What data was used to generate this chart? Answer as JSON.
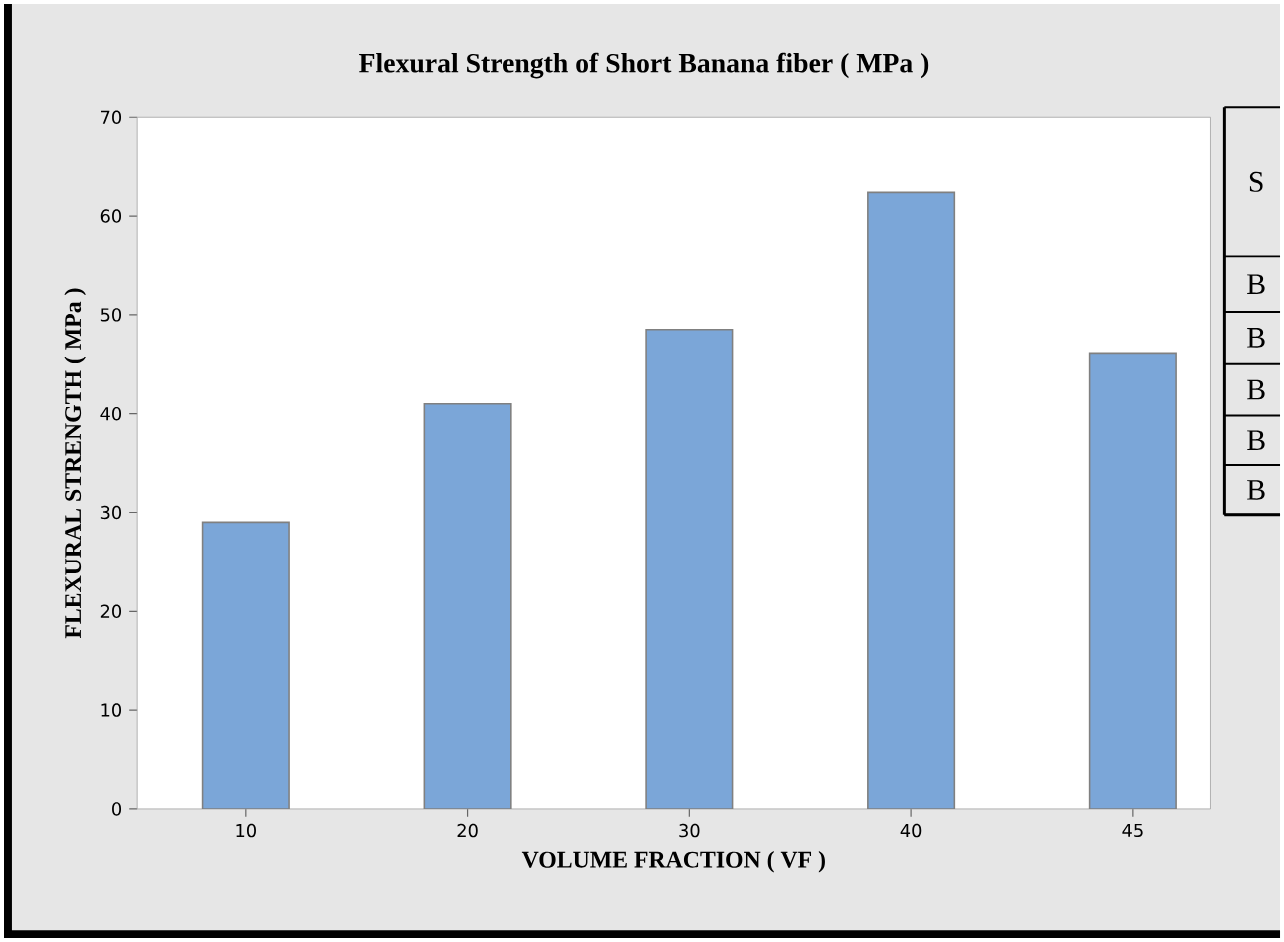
{
  "chart_data": {
    "type": "bar",
    "title": "Flexural Strength of Short Banana fiber ( MPa )",
    "xlabel": "VOLUME FRACTION ( VF )",
    "ylabel": "FLEXURAL STRENGTH ( MPa )",
    "categories": [
      "10",
      "20",
      "30",
      "40",
      "45"
    ],
    "values": [
      29.0,
      41.0,
      48.5,
      62.4,
      46.1
    ],
    "color": "#7ba6d8",
    "ylim": [
      0,
      70
    ],
    "yticks": [
      0,
      10,
      20,
      30,
      40,
      50,
      60,
      70
    ],
    "annotations": [
      "S",
      "B",
      "B",
      "B",
      "B",
      "B"
    ]
  }
}
